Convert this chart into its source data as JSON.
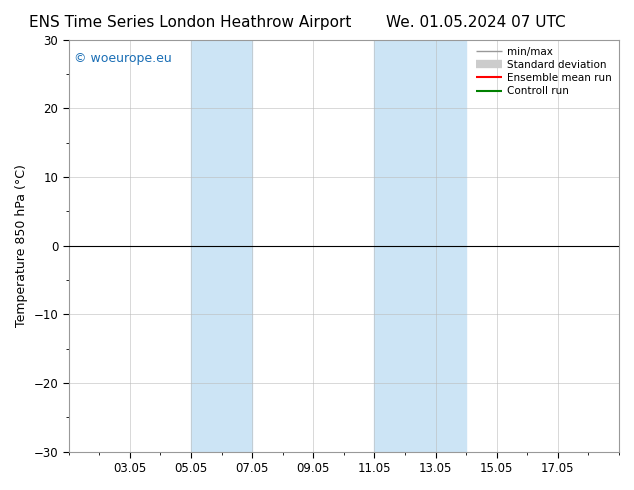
{
  "title_left": "ENS Time Series London Heathrow Airport",
  "title_right": "We. 01.05.2024 07 UTC",
  "ylabel": "Temperature 850 hPa (°C)",
  "ylim": [
    -30,
    30
  ],
  "yticks": [
    -30,
    -20,
    -10,
    0,
    10,
    20,
    30
  ],
  "xtick_labels": [
    "03.05",
    "05.05",
    "07.05",
    "09.05",
    "11.05",
    "13.05",
    "15.05",
    "17.05"
  ],
  "xtick_positions": [
    2,
    4,
    6,
    8,
    10,
    12,
    14,
    16
  ],
  "shaded_bands": [
    {
      "x_start": 4,
      "x_end": 6,
      "color": "#cce4f5"
    },
    {
      "x_start": 10,
      "x_end": 13,
      "color": "#cce4f5"
    }
  ],
  "watermark": "© woeurope.eu",
  "watermark_color": "#1a6eb5",
  "legend": [
    {
      "label": "min/max",
      "color": "#999999",
      "lw": 1.0
    },
    {
      "label": "Standard deviation",
      "color": "#cccccc",
      "lw": 6
    },
    {
      "label": "Ensemble mean run",
      "color": "#ff0000",
      "lw": 1.5
    },
    {
      "label": "Controll run",
      "color": "#008000",
      "lw": 1.5
    }
  ],
  "hline_y": 0,
  "hline_color": "#000000",
  "hline_lw": 0.8,
  "bg_color": "#ffffff",
  "plot_bg_color": "#ffffff",
  "grid_color": "#bbbbbb",
  "title_fontsize": 11,
  "axis_label_fontsize": 9,
  "tick_fontsize": 8.5
}
